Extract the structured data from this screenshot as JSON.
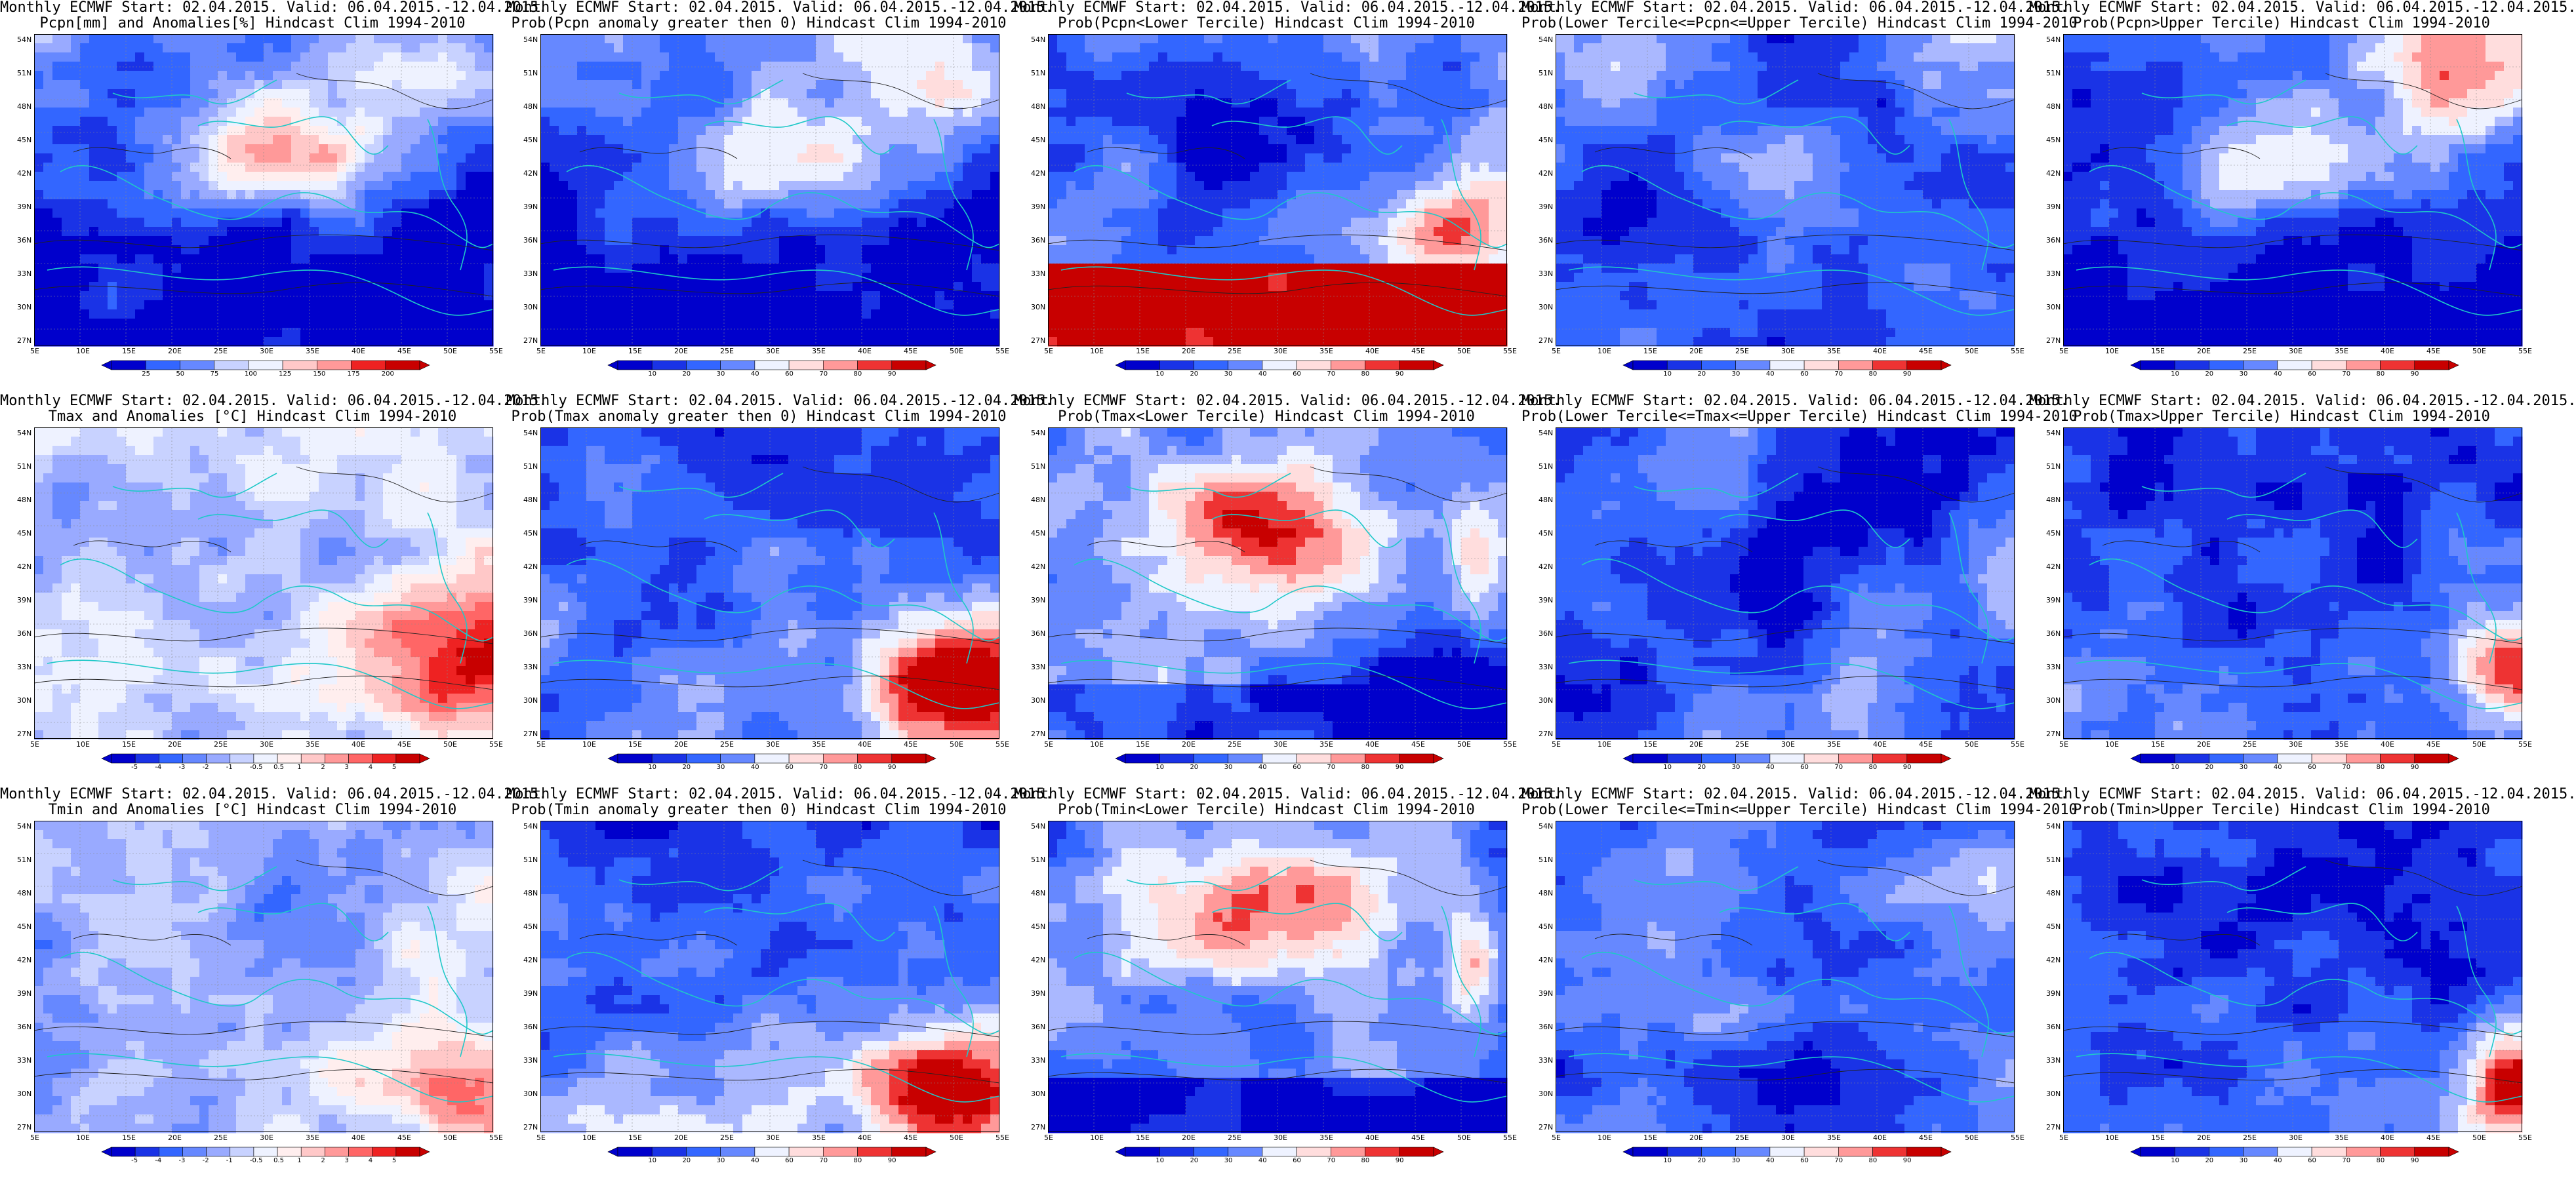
{
  "palettes": {
    "anom": [
      "#0000cc",
      "#1a33e6",
      "#3366ff",
      "#6688ff",
      "#99aaff",
      "#c8d2ff",
      "#eef2ff",
      "#ffeeee",
      "#ffc8c8",
      "#ff9999",
      "#ff6666",
      "#ee2222",
      "#c80000"
    ],
    "prob": [
      "#0000cc",
      "#1a33e6",
      "#3366ff",
      "#6688ff",
      "#aab8ff",
      "#eef2ff",
      "#ffdddd",
      "#ff9999",
      "#ee3333",
      "#c80000"
    ]
  },
  "lat_labels": [
    "54N",
    "51N",
    "48N",
    "45N",
    "42N",
    "39N",
    "36N",
    "33N",
    "30N",
    "27N"
  ],
  "lon_labels": [
    "5E",
    "10E",
    "15E",
    "20E",
    "25E",
    "30E",
    "35E",
    "40E",
    "45E",
    "50E",
    "55E"
  ],
  "panels": [
    {
      "line1": "Monthly ECMWF Start: 02.04.2015. Valid: 06.04.2015.-12.04.2015.",
      "line2": "Pcpn[mm] and Anomalies[%] Hindcast Clim 1994-2010",
      "bar": [
        "25",
        "50",
        "75",
        "100",
        "125",
        "150",
        "175",
        "200"
      ],
      "pal": "anom",
      "pattern": "pcpn_anom"
    },
    {
      "line1": "Monthly ECMWF Start: 02.04.2015. Valid: 06.04.2015.-12.04.2015.",
      "line2": "Prob(Pcpn anomaly greater then 0) Hindcast Clim 1994-2010",
      "bar": [
        "10",
        "20",
        "30",
        "40",
        "60",
        "70",
        "80",
        "90"
      ],
      "pal": "prob",
      "pattern": "pcpn_gt0"
    },
    {
      "line1": "Monthly ECMWF Start: 02.04.2015. Valid: 06.04.2015.-12.04.2015.",
      "line2": "Prob(Pcpn<Lower Tercile) Hindcast Clim 1994-2010",
      "bar": [
        "10",
        "20",
        "30",
        "40",
        "60",
        "70",
        "80",
        "90"
      ],
      "pal": "prob",
      "pattern": "pcpn_low"
    },
    {
      "line1": "Monthly ECMWF Start: 02.04.2015. Valid: 06.04.2015.-12.04.2015.",
      "line2": "Prob(Lower Tercile<=Pcpn<=Upper Tercile) Hindcast Clim 1994-2010",
      "bar": [
        "10",
        "20",
        "30",
        "40",
        "60",
        "70",
        "80",
        "90"
      ],
      "pal": "prob",
      "pattern": "pcpn_mid"
    },
    {
      "line1": "Monthly ECMWF Start: 02.04.2015. Valid: 06.04.2015.-12.04.2015.",
      "line2": "Prob(Pcpn>Upper Tercile) Hindcast Clim 1994-2010",
      "bar": [
        "10",
        "20",
        "30",
        "40",
        "60",
        "70",
        "80",
        "90"
      ],
      "pal": "prob",
      "pattern": "pcpn_gt0"
    },
    {
      "line1": "Monthly ECMWF Start: 02.04.2015. Valid: 06.04.2015.-12.04.2015.",
      "line2": "Tmax and Anomalies [°C] Hindcast Clim 1994-2010",
      "bar": [
        "-5",
        "-4",
        "-3",
        "-2",
        "-1",
        "-0.5",
        "0.5",
        "1",
        "2",
        "3",
        "4",
        "5"
      ],
      "pal": "anom",
      "pattern": "tmax_anom"
    },
    {
      "line1": "Monthly ECMWF Start: 02.04.2015. Valid: 06.04.2015.-12.04.2015.",
      "line2": "Prob(Tmax anomaly greater then 0) Hindcast Clim 1994-2010",
      "bar": [
        "10",
        "20",
        "30",
        "40",
        "60",
        "70",
        "80",
        "90"
      ],
      "pal": "prob",
      "pattern": "tmax_gt0"
    },
    {
      "line1": "Monthly ECMWF Start: 02.04.2015. Valid: 06.04.2015.-12.04.2015.",
      "line2": "Prob(Tmax<Lower Tercile) Hindcast Clim 1994-2010",
      "bar": [
        "10",
        "20",
        "30",
        "40",
        "60",
        "70",
        "80",
        "90"
      ],
      "pal": "prob",
      "pattern": "tmax_low"
    },
    {
      "line1": "Monthly ECMWF Start: 02.04.2015. Valid: 06.04.2015.-12.04.2015.",
      "line2": "Prob(Lower Tercile<=Tmax<=Upper Tercile) Hindcast Clim 1994-2010",
      "bar": [
        "10",
        "20",
        "30",
        "40",
        "60",
        "70",
        "80",
        "90"
      ],
      "pal": "prob",
      "pattern": "tmax_mid"
    },
    {
      "line1": "Monthly ECMWF Start: 02.04.2015. Valid: 06.04.2015.-12.04.2015.",
      "line2": "Prob(Tmax>Upper Tercile) Hindcast Clim 1994-2010",
      "bar": [
        "10",
        "20",
        "30",
        "40",
        "60",
        "70",
        "80",
        "90"
      ],
      "pal": "prob",
      "pattern": "tmax_high"
    },
    {
      "line1": "Monthly ECMWF Start: 02.04.2015. Valid: 06.04.2015.-12.04.2015.",
      "line2": "Tmin and Anomalies [°C] Hindcast Clim 1994-2010",
      "bar": [
        "-5",
        "-4",
        "-3",
        "-2",
        "-1",
        "-0.5",
        "0.5",
        "1",
        "2",
        "3",
        "4",
        "5"
      ],
      "pal": "anom",
      "pattern": "tmin_anom"
    },
    {
      "line1": "Monthly ECMWF Start: 02.04.2015. Valid: 06.04.2015.-12.04.2015.",
      "line2": "Prob(Tmin anomaly greater then 0) Hindcast Clim 1994-2010",
      "bar": [
        "10",
        "20",
        "30",
        "40",
        "60",
        "70",
        "80",
        "90"
      ],
      "pal": "prob",
      "pattern": "tmin_gt0"
    },
    {
      "line1": "Monthly ECMWF Start: 02.04.2015. Valid: 06.04.2015.-12.04.2015.",
      "line2": "Prob(Tmin<Lower Tercile) Hindcast Clim 1994-2010",
      "bar": [
        "10",
        "20",
        "30",
        "40",
        "60",
        "70",
        "80",
        "90"
      ],
      "pal": "prob",
      "pattern": "tmin_low"
    },
    {
      "line1": "Monthly ECMWF Start: 02.04.2015. Valid: 06.04.2015.-12.04.2015.",
      "line2": "Prob(Lower Tercile<=Tmin<=Upper Tercile) Hindcast Clim 1994-2010",
      "bar": [
        "10",
        "20",
        "30",
        "40",
        "60",
        "70",
        "80",
        "90"
      ],
      "pal": "prob",
      "pattern": "tmin_mid"
    },
    {
      "line1": "Monthly ECMWF Start: 02.04.2015. Valid: 06.04.2015.-12.04.2015.",
      "line2": "Prob(Tmin>Upper Tercile) Hindcast Clim 1994-2010",
      "bar": [
        "10",
        "20",
        "30",
        "40",
        "60",
        "70",
        "80",
        "90"
      ],
      "pal": "prob",
      "pattern": "tmin_high"
    }
  ]
}
